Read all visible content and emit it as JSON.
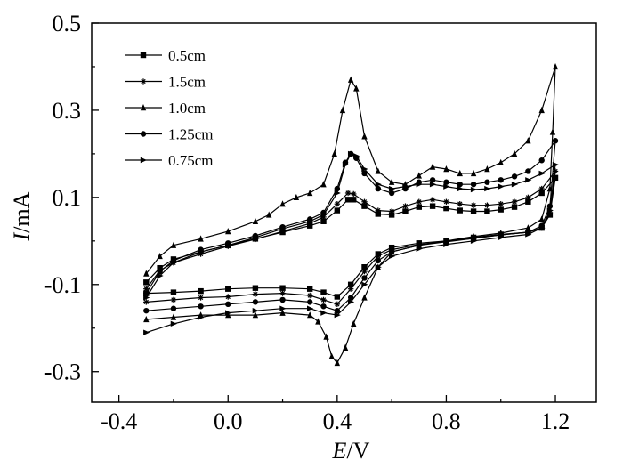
{
  "chart_data": {
    "type": "line",
    "title": "",
    "xlabel": {
      "italic": "E",
      "unit": "/V"
    },
    "ylabel": {
      "italic": "I",
      "unit": "/mA"
    },
    "xlim": [
      -0.5,
      1.35
    ],
    "ylim": [
      -0.37,
      0.5
    ],
    "xticks": [
      -0.4,
      0.0,
      0.4,
      0.8,
      1.2
    ],
    "xtick_labels": [
      "-0.4",
      "0.0",
      "0.4",
      "0.8",
      "1.2"
    ],
    "yticks": [
      -0.3,
      -0.1,
      0.1,
      0.3,
      0.5
    ],
    "ytick_labels": [
      "-0.3",
      "-0.1",
      "0.1",
      "0.3",
      "0.5"
    ],
    "legend_position": "top-left",
    "series": [
      {
        "name": "0.5cm",
        "marker": "square",
        "anodic": [
          [
            -0.3,
            -0.095
          ],
          [
            -0.25,
            -0.062
          ],
          [
            -0.2,
            -0.042
          ],
          [
            -0.1,
            -0.025
          ],
          [
            0.0,
            -0.01
          ],
          [
            0.1,
            0.005
          ],
          [
            0.2,
            0.02
          ],
          [
            0.3,
            0.035
          ],
          [
            0.35,
            0.045
          ],
          [
            0.4,
            0.07
          ],
          [
            0.44,
            0.095
          ],
          [
            0.46,
            0.095
          ],
          [
            0.5,
            0.08
          ],
          [
            0.55,
            0.062
          ],
          [
            0.6,
            0.06
          ],
          [
            0.65,
            0.068
          ],
          [
            0.7,
            0.078
          ],
          [
            0.75,
            0.08
          ],
          [
            0.8,
            0.075
          ],
          [
            0.85,
            0.07
          ],
          [
            0.9,
            0.068
          ],
          [
            0.95,
            0.068
          ],
          [
            1.0,
            0.072
          ],
          [
            1.05,
            0.078
          ],
          [
            1.1,
            0.09
          ],
          [
            1.15,
            0.11
          ],
          [
            1.2,
            0.145
          ]
        ],
        "cathodic": [
          [
            1.2,
            0.145
          ],
          [
            1.18,
            0.06
          ],
          [
            1.15,
            0.03
          ],
          [
            1.1,
            0.02
          ],
          [
            1.0,
            0.015
          ],
          [
            0.9,
            0.008
          ],
          [
            0.8,
            0.0
          ],
          [
            0.7,
            -0.005
          ],
          [
            0.6,
            -0.015
          ],
          [
            0.55,
            -0.03
          ],
          [
            0.5,
            -0.06
          ],
          [
            0.45,
            -0.1
          ],
          [
            0.4,
            -0.128
          ],
          [
            0.35,
            -0.118
          ],
          [
            0.3,
            -0.11
          ],
          [
            0.2,
            -0.108
          ],
          [
            0.1,
            -0.108
          ],
          [
            0.0,
            -0.11
          ],
          [
            -0.1,
            -0.115
          ],
          [
            -0.2,
            -0.118
          ],
          [
            -0.3,
            -0.12
          ]
        ]
      },
      {
        "name": "1.5cm",
        "marker": "star",
        "anodic": [
          [
            -0.3,
            -0.11
          ],
          [
            -0.25,
            -0.068
          ],
          [
            -0.2,
            -0.05
          ],
          [
            -0.1,
            -0.03
          ],
          [
            0.0,
            -0.012
          ],
          [
            0.1,
            0.004
          ],
          [
            0.2,
            0.022
          ],
          [
            0.3,
            0.04
          ],
          [
            0.35,
            0.055
          ],
          [
            0.4,
            0.085
          ],
          [
            0.44,
            0.11
          ],
          [
            0.46,
            0.108
          ],
          [
            0.5,
            0.09
          ],
          [
            0.55,
            0.07
          ],
          [
            0.6,
            0.068
          ],
          [
            0.65,
            0.08
          ],
          [
            0.7,
            0.09
          ],
          [
            0.75,
            0.095
          ],
          [
            0.8,
            0.09
          ],
          [
            0.85,
            0.085
          ],
          [
            0.9,
            0.082
          ],
          [
            0.95,
            0.082
          ],
          [
            1.0,
            0.085
          ],
          [
            1.05,
            0.09
          ],
          [
            1.1,
            0.1
          ],
          [
            1.15,
            0.12
          ],
          [
            1.2,
            0.16
          ]
        ],
        "cathodic": [
          [
            1.2,
            0.16
          ],
          [
            1.18,
            0.065
          ],
          [
            1.15,
            0.03
          ],
          [
            1.1,
            0.02
          ],
          [
            1.0,
            0.014
          ],
          [
            0.9,
            0.006
          ],
          [
            0.8,
            -0.001
          ],
          [
            0.7,
            -0.008
          ],
          [
            0.6,
            -0.02
          ],
          [
            0.55,
            -0.035
          ],
          [
            0.5,
            -0.07
          ],
          [
            0.45,
            -0.11
          ],
          [
            0.4,
            -0.145
          ],
          [
            0.35,
            -0.135
          ],
          [
            0.3,
            -0.125
          ],
          [
            0.2,
            -0.12
          ],
          [
            0.1,
            -0.122
          ],
          [
            0.0,
            -0.128
          ],
          [
            -0.1,
            -0.13
          ],
          [
            -0.2,
            -0.135
          ],
          [
            -0.3,
            -0.14
          ]
        ]
      },
      {
        "name": "1.0cm",
        "marker": "triangle",
        "anodic": [
          [
            -0.3,
            -0.075
          ],
          [
            -0.25,
            -0.035
          ],
          [
            -0.2,
            -0.01
          ],
          [
            -0.1,
            0.005
          ],
          [
            0.0,
            0.022
          ],
          [
            0.1,
            0.045
          ],
          [
            0.15,
            0.06
          ],
          [
            0.2,
            0.085
          ],
          [
            0.25,
            0.1
          ],
          [
            0.3,
            0.11
          ],
          [
            0.35,
            0.13
          ],
          [
            0.39,
            0.2
          ],
          [
            0.42,
            0.3
          ],
          [
            0.45,
            0.37
          ],
          [
            0.47,
            0.35
          ],
          [
            0.5,
            0.24
          ],
          [
            0.55,
            0.16
          ],
          [
            0.6,
            0.135
          ],
          [
            0.65,
            0.13
          ],
          [
            0.7,
            0.15
          ],
          [
            0.75,
            0.17
          ],
          [
            0.8,
            0.165
          ],
          [
            0.85,
            0.155
          ],
          [
            0.9,
            0.155
          ],
          [
            0.95,
            0.165
          ],
          [
            1.0,
            0.18
          ],
          [
            1.05,
            0.2
          ],
          [
            1.1,
            0.23
          ],
          [
            1.15,
            0.3
          ],
          [
            1.2,
            0.4
          ]
        ],
        "cathodic": [
          [
            1.2,
            0.4
          ],
          [
            1.19,
            0.25
          ],
          [
            1.18,
            0.12
          ],
          [
            1.15,
            0.05
          ],
          [
            1.1,
            0.03
          ],
          [
            1.0,
            0.018
          ],
          [
            0.9,
            0.01
          ],
          [
            0.8,
            0.0
          ],
          [
            0.7,
            -0.01
          ],
          [
            0.6,
            -0.025
          ],
          [
            0.55,
            -0.06
          ],
          [
            0.5,
            -0.13
          ],
          [
            0.46,
            -0.19
          ],
          [
            0.43,
            -0.245
          ],
          [
            0.4,
            -0.28
          ],
          [
            0.38,
            -0.265
          ],
          [
            0.36,
            -0.22
          ],
          [
            0.33,
            -0.185
          ],
          [
            0.3,
            -0.17
          ],
          [
            0.2,
            -0.165
          ],
          [
            0.1,
            -0.17
          ],
          [
            0.0,
            -0.17
          ],
          [
            -0.1,
            -0.17
          ],
          [
            -0.2,
            -0.175
          ],
          [
            -0.3,
            -0.18
          ]
        ]
      },
      {
        "name": "1.25cm",
        "marker": "circle",
        "anodic": [
          [
            -0.3,
            -0.12
          ],
          [
            -0.25,
            -0.07
          ],
          [
            -0.2,
            -0.045
          ],
          [
            -0.1,
            -0.02
          ],
          [
            0.0,
            -0.005
          ],
          [
            0.1,
            0.012
          ],
          [
            0.2,
            0.032
          ],
          [
            0.3,
            0.05
          ],
          [
            0.35,
            0.065
          ],
          [
            0.4,
            0.12
          ],
          [
            0.43,
            0.18
          ],
          [
            0.45,
            0.2
          ],
          [
            0.47,
            0.19
          ],
          [
            0.5,
            0.155
          ],
          [
            0.55,
            0.12
          ],
          [
            0.6,
            0.11
          ],
          [
            0.65,
            0.12
          ],
          [
            0.7,
            0.135
          ],
          [
            0.75,
            0.14
          ],
          [
            0.8,
            0.135
          ],
          [
            0.85,
            0.13
          ],
          [
            0.9,
            0.13
          ],
          [
            0.95,
            0.135
          ],
          [
            1.0,
            0.14
          ],
          [
            1.05,
            0.148
          ],
          [
            1.1,
            0.16
          ],
          [
            1.15,
            0.185
          ],
          [
            1.2,
            0.23
          ]
        ],
        "cathodic": [
          [
            1.2,
            0.23
          ],
          [
            1.18,
            0.08
          ],
          [
            1.15,
            0.035
          ],
          [
            1.1,
            0.02
          ],
          [
            1.0,
            0.014
          ],
          [
            0.9,
            0.006
          ],
          [
            0.8,
            -0.002
          ],
          [
            0.7,
            -0.01
          ],
          [
            0.6,
            -0.025
          ],
          [
            0.55,
            -0.045
          ],
          [
            0.5,
            -0.085
          ],
          [
            0.45,
            -0.13
          ],
          [
            0.4,
            -0.16
          ],
          [
            0.35,
            -0.15
          ],
          [
            0.3,
            -0.14
          ],
          [
            0.2,
            -0.135
          ],
          [
            0.1,
            -0.14
          ],
          [
            0.0,
            -0.145
          ],
          [
            -0.1,
            -0.15
          ],
          [
            -0.2,
            -0.155
          ],
          [
            -0.3,
            -0.16
          ]
        ]
      },
      {
        "name": "0.75cm",
        "marker": "right-triangle",
        "anodic": [
          [
            -0.3,
            -0.13
          ],
          [
            -0.25,
            -0.08
          ],
          [
            -0.2,
            -0.05
          ],
          [
            -0.1,
            -0.025
          ],
          [
            0.0,
            -0.01
          ],
          [
            0.1,
            0.008
          ],
          [
            0.2,
            0.028
          ],
          [
            0.3,
            0.045
          ],
          [
            0.35,
            0.06
          ],
          [
            0.4,
            0.11
          ],
          [
            0.43,
            0.175
          ],
          [
            0.45,
            0.2
          ],
          [
            0.47,
            0.195
          ],
          [
            0.5,
            0.165
          ],
          [
            0.55,
            0.13
          ],
          [
            0.6,
            0.12
          ],
          [
            0.65,
            0.125
          ],
          [
            0.7,
            0.13
          ],
          [
            0.75,
            0.13
          ],
          [
            0.8,
            0.125
          ],
          [
            0.85,
            0.12
          ],
          [
            0.9,
            0.118
          ],
          [
            0.95,
            0.12
          ],
          [
            1.0,
            0.125
          ],
          [
            1.05,
            0.13
          ],
          [
            1.1,
            0.14
          ],
          [
            1.15,
            0.155
          ],
          [
            1.2,
            0.175
          ]
        ],
        "cathodic": [
          [
            1.2,
            0.175
          ],
          [
            1.18,
            0.07
          ],
          [
            1.15,
            0.03
          ],
          [
            1.1,
            0.015
          ],
          [
            1.0,
            0.008
          ],
          [
            0.9,
            0.0
          ],
          [
            0.8,
            -0.008
          ],
          [
            0.7,
            -0.018
          ],
          [
            0.6,
            -0.035
          ],
          [
            0.55,
            -0.06
          ],
          [
            0.5,
            -0.1
          ],
          [
            0.45,
            -0.14
          ],
          [
            0.4,
            -0.17
          ],
          [
            0.35,
            -0.165
          ],
          [
            0.3,
            -0.155
          ],
          [
            0.2,
            -0.155
          ],
          [
            0.1,
            -0.16
          ],
          [
            0.0,
            -0.165
          ],
          [
            -0.1,
            -0.175
          ],
          [
            -0.2,
            -0.19
          ],
          [
            -0.3,
            -0.21
          ]
        ]
      }
    ]
  }
}
